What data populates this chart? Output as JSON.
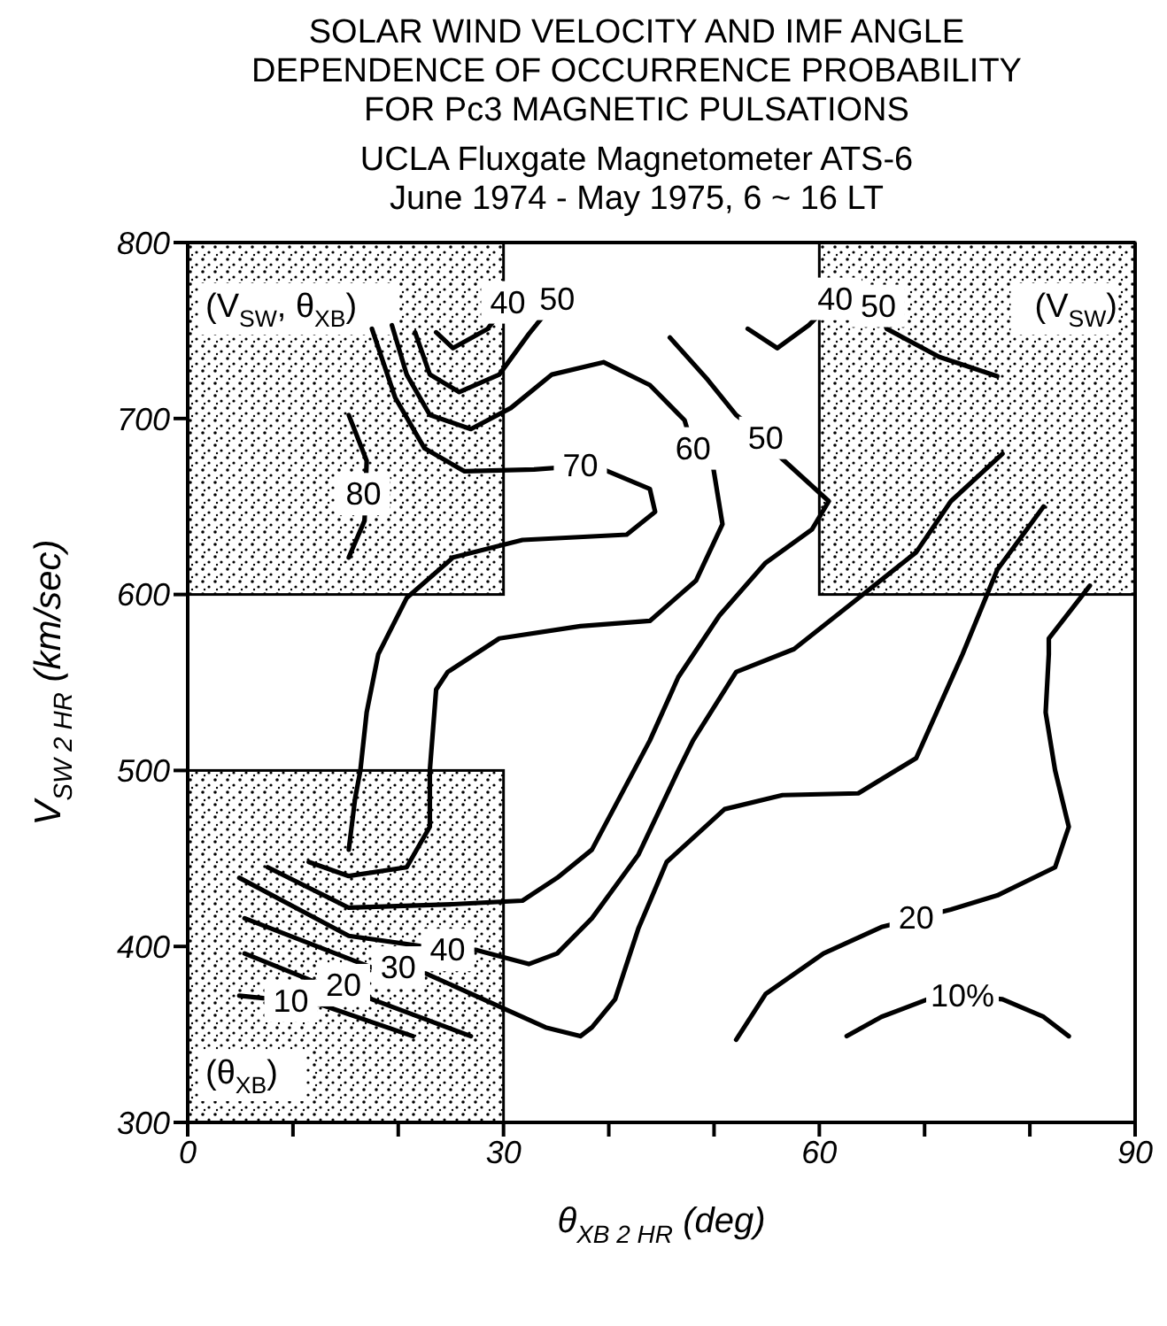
{
  "chart_data": {
    "type": "line",
    "title": "SOLAR WIND VELOCITY AND IMF ANGLE\nDEPENDENCE OF OCCURRENCE PROBABILITY\nFOR Pc3 MAGNETIC PULSATIONS",
    "subtitle": "UCLA Fluxgate Magnetometer ATS-6\nJune 1974 - May 1975,  6 ~ 16 LT",
    "xlabel": "θ$_{XB 2 HR}$ (deg)",
    "ylabel": "V$_{SW 2 HR}$ (km/sec)",
    "xlim": [
      0,
      90
    ],
    "xticks": [
      0,
      {
        "value": 10,
        "label": null
      },
      {
        "value": 20,
        "label": null
      },
      30,
      {
        "value": 40,
        "label": null
      },
      {
        "value": 50,
        "label": null
      },
      60,
      {
        "value": 70,
        "label": null
      },
      {
        "value": 80,
        "label": null
      },
      90
    ],
    "ylim": [
      300,
      800
    ],
    "yticks": [
      300,
      400,
      500,
      600,
      700,
      800
    ],
    "marker": "none",
    "line_style": "solid",
    "series": [
      {
        "color": "#000000",
        "x": [
          23.6,
          25.2,
          28.5,
          30.4
        ],
        "values": [
          749,
          740,
          751,
          766
        ]
      },
      {
        "color": "#000000",
        "x": [
          53.2,
          56,
          59,
          61.5
        ],
        "values": [
          751,
          740,
          753,
          768
        ]
      },
      {
        "color": "#000000",
        "x": [
          21.6,
          23,
          25.8,
          29.6,
          32.4,
          35.1
        ],
        "values": [
          749,
          725,
          715,
          725,
          748,
          768
        ]
      },
      {
        "color": "#000000",
        "x": [
          65.6,
          66.4,
          71.4,
          76.9
        ],
        "values": [
          764,
          751,
          735,
          724
        ]
      },
      {
        "color": "#000000",
        "x": [
          17.5,
          19.7,
          22.5,
          26.3,
          32.9,
          37.3,
          39.5,
          43.9,
          44.4,
          41.7,
          31.8,
          25.2,
          20.8,
          18.1,
          17,
          16.4,
          15.9,
          15.3
        ],
        "values": [
          751,
          712,
          683,
          670,
          671,
          673,
          671,
          660,
          647,
          634,
          631,
          621,
          598,
          566,
          533,
          500,
          484,
          455
        ]
      },
      {
        "color": "#000000",
        "x": [
          19.4,
          20.8,
          23,
          26.9,
          30.7,
          34.6,
          39.5,
          43.9,
          47.2,
          48,
          49.9,
          50.8,
          48.3,
          43.9,
          37.3,
          29.6,
          24.7,
          23.6,
          23,
          23,
          20.8,
          15.3,
          11.5
        ],
        "values": [
          753,
          725,
          702,
          694,
          706,
          725,
          732,
          719,
          699,
          683,
          673,
          640,
          608,
          585,
          582,
          575,
          556,
          546,
          500,
          468,
          445,
          440,
          448
        ]
      },
      {
        "color": "#000000",
        "x": [
          15.3,
          17,
          16.8,
          15.3
        ],
        "values": [
          702,
          676,
          642,
          621
        ]
      },
      {
        "color": "#000000",
        "x": [
          45.8,
          49.4,
          52.1,
          54.9,
          56.3,
          60.9,
          59.3,
          54.9,
          50.5,
          46.6,
          43.9,
          38.4,
          35.1,
          31.8,
          25.2,
          15.3,
          7.6
        ],
        "values": [
          746,
          722,
          702,
          689,
          678,
          653,
          637,
          618,
          588,
          553,
          517,
          455,
          439,
          426,
          424,
          422,
          445
        ]
      },
      {
        "color": "#000000",
        "x": [
          77.4,
          72.5,
          69.2,
          63.1,
          57.6,
          52.1,
          48,
          46.6,
          42.8,
          38.4,
          35.1,
          32.4,
          27.4,
          24.7,
          15.3,
          4.9
        ],
        "values": [
          680,
          653,
          624,
          595,
          569,
          556,
          517,
          500,
          452,
          416,
          396,
          390,
          398,
          398,
          406,
          439
        ]
      },
      {
        "color": "#000000",
        "x": [
          81.3,
          76.9,
          73.6,
          69.2,
          63.7,
          56.5,
          51,
          45.5,
          42.8,
          40.6,
          38.4,
          37.3,
          34,
          22.5,
          20,
          17.5,
          5.4
        ],
        "values": [
          650,
          614,
          566,
          507,
          487,
          486,
          478,
          448,
          410,
          370,
          354,
          349,
          354,
          385,
          388,
          388,
          416
        ]
      },
      {
        "color": "#000000",
        "x": [
          85.7,
          81.8,
          81.8,
          81.5,
          82.4,
          83.7,
          82.4,
          76.9,
          72.5,
          69.2,
          65.9,
          60.4,
          54.9,
          52.1
        ],
        "values": [
          605,
          575,
          566,
          533,
          500,
          468,
          445,
          429,
          421,
          416,
          411,
          396,
          373,
          347
        ]
      },
      {
        "color": "#000000",
        "x": [
          5.4,
          12,
          14.8,
          17.5,
          26.9
        ],
        "values": [
          396,
          380,
          378,
          370,
          349
        ]
      },
      {
        "color": "#000000",
        "x": [
          4.9,
          8.2,
          9.8,
          12.6,
          21.4
        ],
        "values": [
          372,
          370,
          369,
          367,
          349
        ]
      },
      {
        "color": "#000000",
        "x": [
          62.6,
          65.9,
          70.3,
          73.6,
          77.4,
          81.3,
          83.7
        ],
        "values": [
          349,
          360,
          370,
          372,
          370,
          360,
          349
        ]
      }
    ],
    "annotations": [
      {
        "text": "40",
        "x": 30.4,
        "y": 766
      },
      {
        "text": "50",
        "x": 35.1,
        "y": 768
      },
      {
        "text": "40",
        "x": 61.5,
        "y": 768
      },
      {
        "text": "50",
        "x": 65.6,
        "y": 764
      },
      {
        "text": "70",
        "x": 37.3,
        "y": 673
      },
      {
        "text": "60",
        "x": 48,
        "y": 683
      },
      {
        "text": "50",
        "x": 54.9,
        "y": 689
      },
      {
        "text": "80",
        "x": 16.7,
        "y": 657
      },
      {
        "text": "40",
        "x": 24.7,
        "y": 398
      },
      {
        "text": "30",
        "x": 20,
        "y": 388
      },
      {
        "text": "20",
        "x": 14.8,
        "y": 378
      },
      {
        "text": "10",
        "x": 9.8,
        "y": 369
      },
      {
        "text": "20",
        "x": 69.2,
        "y": 416
      },
      {
        "text": "10%",
        "x": 73.6,
        "y": 372
      },
      "(V$_{SW}$, θ$_{XB}$)",
      "(V$_{SW}$)",
      "(θ$_{XB}$)"
    ]
  }
}
